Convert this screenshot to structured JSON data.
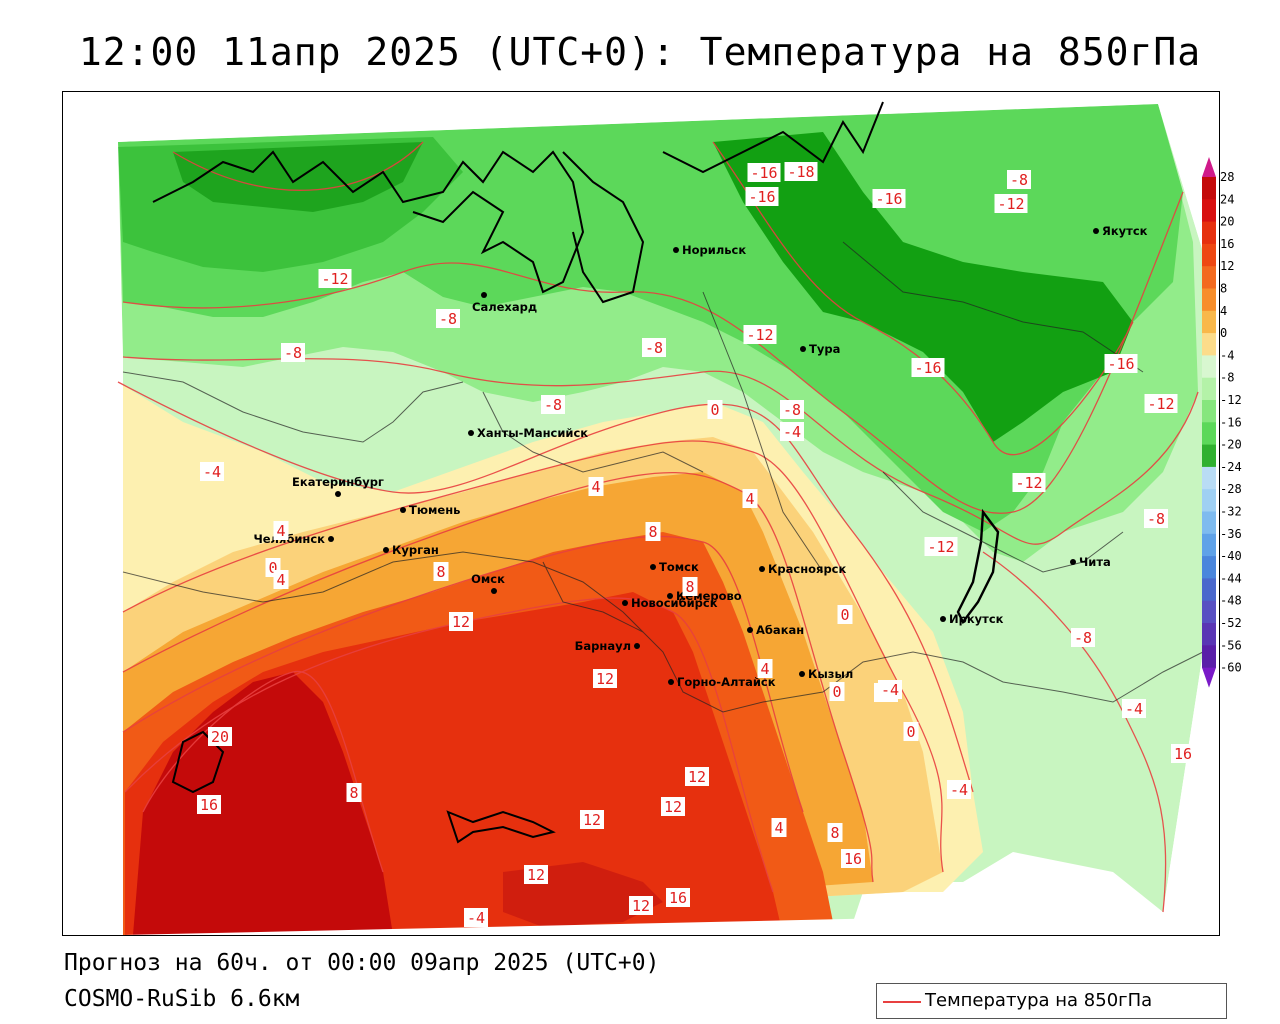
{
  "title": "12:00 11апр 2025 (UTC+0): Температура на 850гПа",
  "forecast_line": "Прогноз на 60ч. от 00:00 09апр 2025 (UTC+0)",
  "model_line": "COSMO-RuSib 6.6км",
  "legend": {
    "label": "Температура на 850гПа",
    "line_color": "#e84040"
  },
  "colors": {
    "dark_red": "#c40a0a",
    "red": "#e6300e",
    "red_orange": "#f15a16",
    "orange": "#f6a634",
    "light_orange": "#fbd27a",
    "pale_yellow": "#fdf0b0",
    "pale_green": "#c8f5c0",
    "light_green": "#92ec8a",
    "green": "#5cd85a",
    "mid_green": "#3cc23c",
    "dark_green": "#12a012",
    "isoline": "#e84040"
  },
  "scale": {
    "ticks": [
      "28",
      "24",
      "20",
      "16",
      "12",
      "8",
      "4",
      "0",
      "-4",
      "-8",
      "-12",
      "-16",
      "-20",
      "-24",
      "-28",
      "-32",
      "-36",
      "-40",
      "-44",
      "-48",
      "-52",
      "-56",
      "-60"
    ],
    "colors": [
      "#c40a0a",
      "#d81010",
      "#e6300e",
      "#ee4812",
      "#f36a1e",
      "#f78e2a",
      "#f9b84a",
      "#fcdc8a",
      "#d8f7d0",
      "#b4f2a8",
      "#86e67e",
      "#5cd85a",
      "#2fb02f",
      "#b9dcf5",
      "#9fd0f3",
      "#7ebbef",
      "#5fa2e8",
      "#4a86dc",
      "#4a68cc",
      "#5850c2",
      "#5a36b4",
      "#5a1fa8"
    ],
    "top_arrow_color": "#d01a8a",
    "bottom_arrow_color": "#7a1ac8"
  },
  "cities": [
    {
      "name": "Якутск"
    },
    {
      "name": "Норильск"
    },
    {
      "name": "Салехард"
    },
    {
      "name": "Тура"
    },
    {
      "name": "Ханты-Мансийск"
    },
    {
      "name": "Екатеринбург"
    },
    {
      "name": "Тюмень"
    },
    {
      "name": "Челябинск"
    },
    {
      "name": "Курган"
    },
    {
      "name": "Томск"
    },
    {
      "name": "Красноярск"
    },
    {
      "name": "Омск"
    },
    {
      "name": "Новосибирск"
    },
    {
      "name": "Кемерово"
    },
    {
      "name": "Абакан"
    },
    {
      "name": "Иркутск"
    },
    {
      "name": "Барнаул"
    },
    {
      "name": "Кызыл"
    },
    {
      "name": "Горно-Алтайск"
    },
    {
      "name": "Чита"
    }
  ],
  "contour_labels": [
    "-16",
    "-18",
    "-16",
    "-16",
    "-8",
    "-12",
    "-12",
    "-8",
    "-8",
    "-12",
    "-16",
    "-16",
    "-12",
    "-8",
    "-8",
    "0",
    "-8",
    "-4",
    "-4",
    "4",
    "4",
    "8",
    "-12",
    "-12",
    "-8",
    "4",
    "0",
    "4",
    "8",
    "8",
    "12",
    "12",
    "-8",
    "0",
    "-4",
    "4",
    "0",
    "-4",
    "0",
    "-4",
    "-4",
    "16",
    "20",
    "16",
    "8",
    "12",
    "12",
    "12",
    "4",
    "8",
    "16",
    "12",
    "12",
    "16",
    "-4"
  ]
}
